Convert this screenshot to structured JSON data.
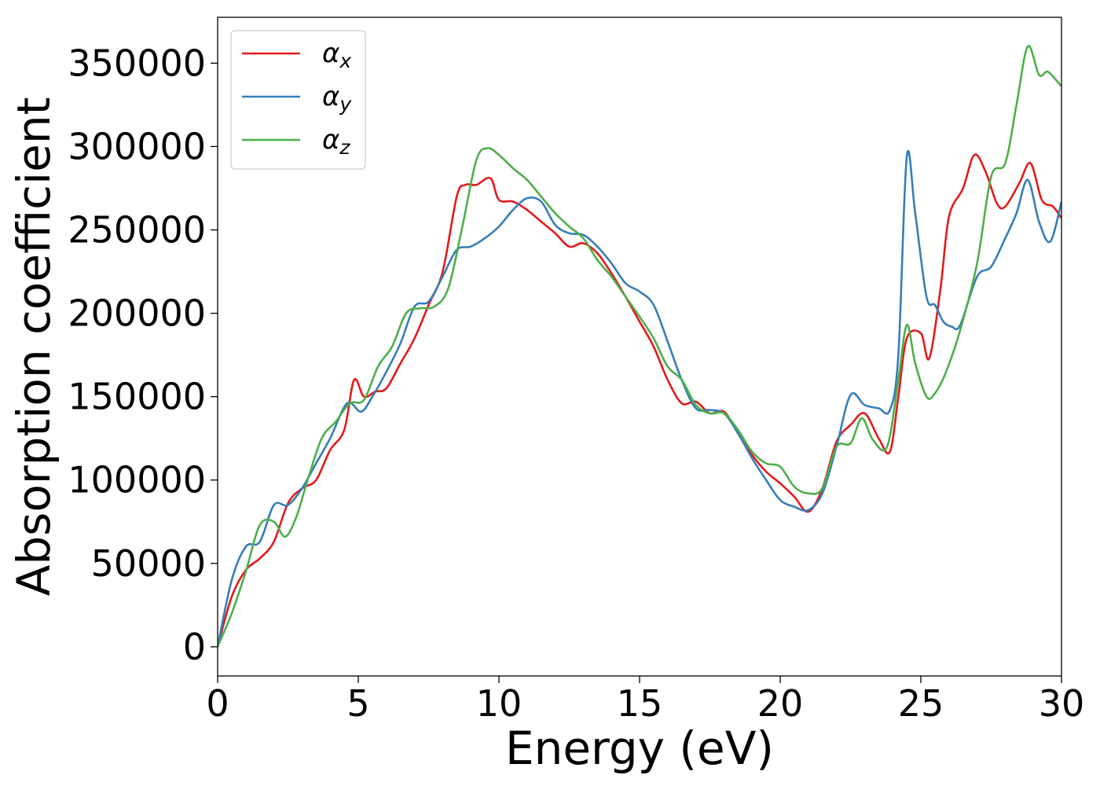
{
  "chart_data": {
    "type": "line",
    "title": "",
    "xlabel": "Energy (eV)",
    "ylabel": "Absorption coefficient",
    "xlim": [
      0,
      30
    ],
    "ylim": [
      -17500,
      377500
    ],
    "xticks": [
      0,
      5,
      10,
      15,
      20,
      25,
      30
    ],
    "yticks": [
      0,
      50000,
      100000,
      150000,
      200000,
      250000,
      300000,
      350000
    ],
    "grid": false,
    "legend_placement": "top-left",
    "series": [
      {
        "name": "αx",
        "legend_base": "α",
        "legend_sub": "x",
        "color": "#e41a1c",
        "x": [
          0,
          0.5,
          1.0,
          1.5,
          2.0,
          2.5,
          3.0,
          3.5,
          4.0,
          4.5,
          4.85,
          5.2,
          5.6,
          6.0,
          6.5,
          7.0,
          7.5,
          8.0,
          8.5,
          8.8,
          9.2,
          9.7,
          10.0,
          10.5,
          11.0,
          11.5,
          12.0,
          12.5,
          13.0,
          13.5,
          14.0,
          14.5,
          15.0,
          15.5,
          16.0,
          16.5,
          17.0,
          17.5,
          18.0,
          18.5,
          19.0,
          19.5,
          20.0,
          20.5,
          21.0,
          21.5,
          22.0,
          22.5,
          23.0,
          23.5,
          23.9,
          24.2,
          24.5,
          25.0,
          25.3,
          25.7,
          26.0,
          26.5,
          26.9,
          27.3,
          27.7,
          28.0,
          28.5,
          28.9,
          29.3,
          29.7,
          30.0
        ],
        "y": [
          0,
          30000,
          46000,
          53000,
          63000,
          86000,
          95000,
          100000,
          118000,
          130000,
          160000,
          150000,
          153000,
          155000,
          170000,
          185000,
          205000,
          225000,
          270000,
          277000,
          277000,
          281000,
          268000,
          267000,
          262000,
          255000,
          248000,
          240000,
          242000,
          236000,
          224000,
          210000,
          195000,
          180000,
          160000,
          146000,
          147000,
          140000,
          141000,
          128000,
          115000,
          105000,
          98000,
          90000,
          81000,
          95000,
          123000,
          133000,
          140000,
          125000,
          117000,
          150000,
          185000,
          188000,
          173000,
          215000,
          258000,
          275000,
          295000,
          285000,
          266000,
          264000,
          278000,
          290000,
          268000,
          264000,
          257000
        ]
      },
      {
        "name": "αy",
        "legend_base": "α",
        "legend_sub": "y",
        "color": "#377eb8",
        "x": [
          0,
          0.5,
          1.0,
          1.5,
          2.0,
          2.5,
          3.0,
          3.5,
          4.0,
          4.6,
          5.1,
          5.5,
          6.0,
          6.5,
          7.0,
          7.5,
          8.0,
          8.5,
          9.0,
          9.5,
          10.0,
          10.5,
          11.0,
          11.5,
          12.0,
          12.5,
          13.0,
          13.5,
          14.0,
          14.5,
          15.0,
          15.5,
          16.0,
          16.5,
          17.0,
          17.5,
          18.0,
          18.5,
          19.0,
          19.5,
          20.0,
          20.5,
          21.0,
          21.5,
          22.0,
          22.5,
          23.0,
          23.5,
          23.9,
          24.2,
          24.5,
          24.8,
          25.2,
          25.5,
          25.8,
          26.1,
          26.4,
          27.0,
          27.5,
          28.0,
          28.4,
          28.8,
          29.2,
          29.6,
          30.0
        ],
        "y": [
          0,
          40000,
          60000,
          63000,
          85000,
          85000,
          95000,
          110000,
          125000,
          146000,
          141000,
          150000,
          165000,
          182000,
          204000,
          207000,
          222000,
          238000,
          240000,
          245000,
          252000,
          262000,
          269000,
          267000,
          253000,
          248000,
          247000,
          240000,
          230000,
          218000,
          213000,
          205000,
          183000,
          160000,
          143000,
          142000,
          140000,
          128000,
          113000,
          100000,
          88000,
          84000,
          82000,
          92000,
          120000,
          151000,
          145000,
          143000,
          142000,
          175000,
          294000,
          260000,
          210000,
          205000,
          195000,
          192000,
          193000,
          222000,
          228000,
          245000,
          260000,
          280000,
          255000,
          243000,
          267000
        ]
      },
      {
        "name": "αz",
        "legend_base": "α",
        "legend_sub": "z",
        "color": "#4daf4a",
        "x": [
          0,
          0.5,
          1.0,
          1.5,
          2.0,
          2.4,
          2.8,
          3.2,
          3.7,
          4.2,
          4.7,
          5.2,
          5.7,
          6.2,
          6.7,
          7.2,
          7.7,
          8.2,
          8.7,
          9.2,
          9.6,
          10.0,
          10.5,
          11.0,
          11.5,
          12.0,
          12.5,
          13.0,
          13.5,
          14.0,
          14.5,
          15.0,
          15.5,
          16.0,
          16.5,
          17.0,
          17.5,
          18.0,
          18.5,
          19.0,
          19.5,
          20.0,
          20.5,
          21.0,
          21.5,
          22.0,
          22.5,
          22.9,
          23.3,
          23.8,
          24.2,
          24.5,
          24.8,
          25.2,
          25.5,
          25.9,
          26.4,
          27.0,
          27.5,
          28.0,
          28.4,
          28.8,
          29.2,
          29.5,
          29.8,
          30.0
        ],
        "y": [
          0,
          20000,
          45000,
          73000,
          75000,
          66000,
          78000,
          100000,
          125000,
          135000,
          146000,
          148000,
          168000,
          180000,
          200000,
          203000,
          204000,
          215000,
          252000,
          292000,
          299000,
          295000,
          287000,
          280000,
          270000,
          260000,
          252000,
          245000,
          232000,
          222000,
          210000,
          198000,
          185000,
          168000,
          160000,
          145000,
          140000,
          140000,
          130000,
          117000,
          110000,
          108000,
          96000,
          92000,
          95000,
          120000,
          122000,
          137000,
          124000,
          120000,
          160000,
          193000,
          170000,
          150000,
          152000,
          165000,
          190000,
          230000,
          282000,
          290000,
          325000,
          360000,
          343000,
          345000,
          340000,
          336000
        ]
      }
    ]
  }
}
